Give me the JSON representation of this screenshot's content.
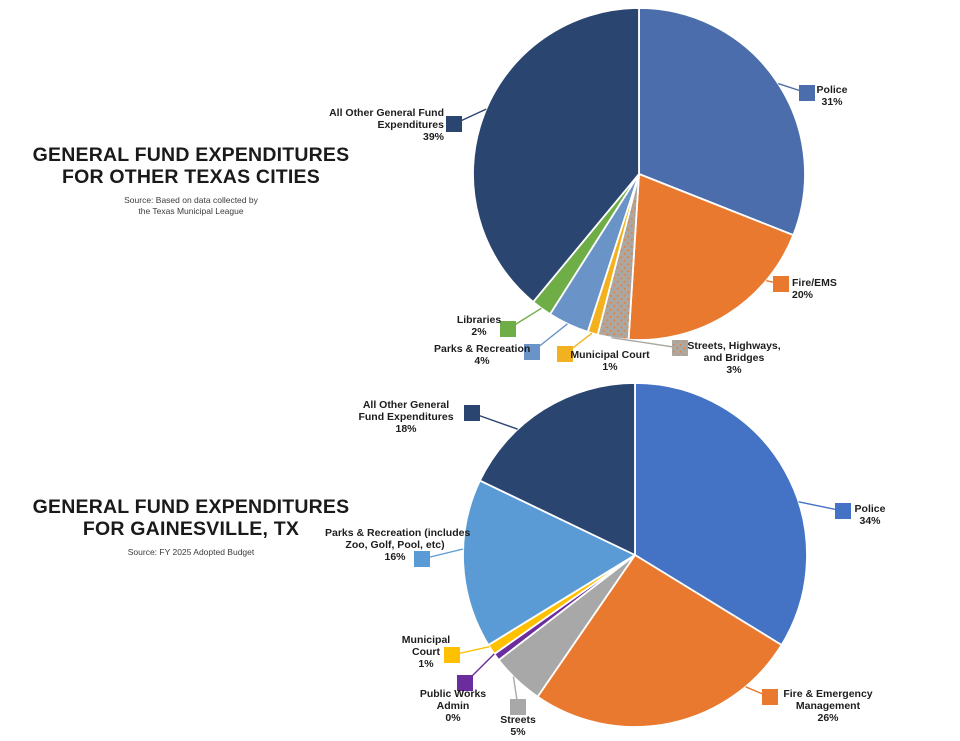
{
  "page": {
    "background": "#ffffff"
  },
  "chart_data": [
    {
      "type": "pie",
      "title_lines": [
        "GENERAL FUND EXPENDITURES",
        "FOR OTHER TEXAS CITIES"
      ],
      "source_lines": [
        "Source: Based on data collected by",
        "the Texas Municipal League"
      ],
      "direction": "clockwise",
      "start_angle_deg": 0,
      "legend_position": "callout-labels",
      "slices": [
        {
          "label": "Police",
          "label_lines": [
            "Police"
          ],
          "value": 31,
          "pct_text": "31%",
          "color": "#4C6DAB"
        },
        {
          "label": "Fire/EMS",
          "label_lines": [
            "Fire/EMS"
          ],
          "value": 20,
          "pct_text": "20%",
          "color": "#E8792F"
        },
        {
          "label": "Streets, Highways, and Bridges",
          "label_lines": [
            "Streets, Highways,",
            "and Bridges"
          ],
          "value": 3,
          "pct_text": "3%",
          "color": "#ABA7A2",
          "pattern": "orange-dots",
          "dot_color": "#E8823A"
        },
        {
          "label": "Municipal Court",
          "label_lines": [
            "Municipal Court"
          ],
          "value": 1,
          "pct_text": "1%",
          "color": "#F2B11E"
        },
        {
          "label": "Parks & Recreation",
          "label_lines": [
            "Parks & Recreation"
          ],
          "value": 4,
          "pct_text": "4%",
          "color": "#6A94C8"
        },
        {
          "label": "Libraries",
          "label_lines": [
            "Libraries"
          ],
          "value": 2,
          "pct_text": "2%",
          "color": "#6FAD47"
        },
        {
          "label": "All Other General Fund Expenditures",
          "label_lines": [
            "All Other General Fund",
            "Expenditures"
          ],
          "value": 39,
          "pct_text": "39%",
          "color": "#2A4570"
        }
      ]
    },
    {
      "type": "pie",
      "title_lines": [
        "GENERAL FUND EXPENDITURES",
        "FOR GAINESVILLE, TX"
      ],
      "source_lines": [
        "Source: FY 2025 Adopted Budget"
      ],
      "direction": "clockwise",
      "start_angle_deg": 0,
      "legend_position": "callout-labels",
      "slices": [
        {
          "label": "Police",
          "label_lines": [
            "Police"
          ],
          "value": 34,
          "pct_text": "34%",
          "color": "#4472C4"
        },
        {
          "label": "Fire & Emergency Management",
          "label_lines": [
            "Fire & Emergency",
            "Management"
          ],
          "value": 26,
          "pct_text": "26%",
          "color": "#E8792F"
        },
        {
          "label": "Streets",
          "label_lines": [
            "Streets"
          ],
          "value": 5,
          "pct_text": "5%",
          "color": "#A8A8A8"
        },
        {
          "label": "Public Works Admin",
          "label_lines": [
            "Public Works",
            "Admin"
          ],
          "value": 0,
          "pct_text": "0%",
          "color": "#6B2D9E"
        },
        {
          "label": "Municipal Court",
          "label_lines": [
            "Municipal",
            "Court"
          ],
          "value": 1,
          "pct_text": "1%",
          "color": "#FFC000"
        },
        {
          "label": "Parks & Recreation (includes Zoo, Golf, Pool, etc)",
          "label_lines": [
            "Parks & Recreation (includes",
            "Zoo, Golf, Pool, etc)"
          ],
          "value": 16,
          "pct_text": "16%",
          "color": "#5B9BD5"
        },
        {
          "label": "All Other General Fund Expenditures",
          "label_lines": [
            "All Other General",
            "Fund Expenditures"
          ],
          "value": 18,
          "pct_text": "18%",
          "color": "#2A4570"
        }
      ]
    }
  ]
}
